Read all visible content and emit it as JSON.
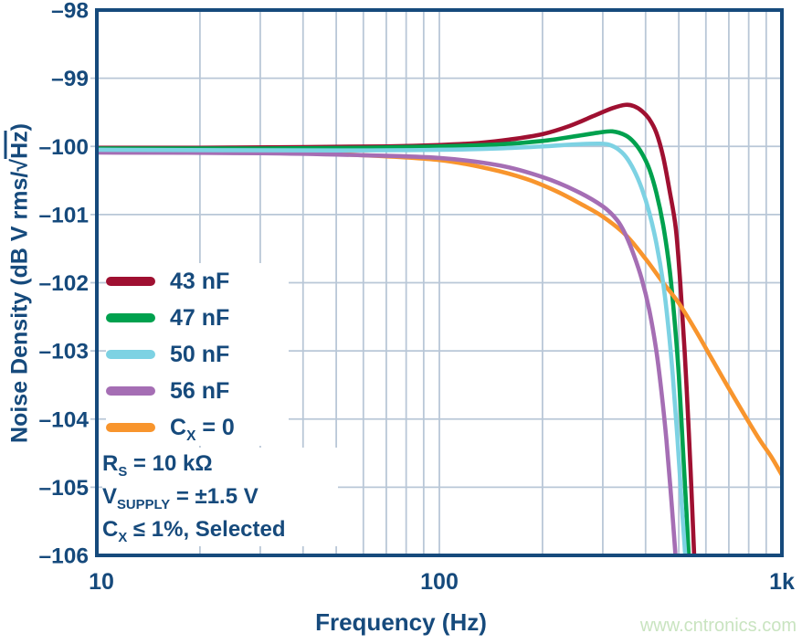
{
  "colors": {
    "navy": "#164A7C",
    "grid": "#b9c7d7",
    "background": "#ffffff",
    "watermark_green": "#c9e4c0"
  },
  "watermark": "www.cntronics.com",
  "chart_data": {
    "type": "line",
    "title": "",
    "xlabel": "Frequency (Hz)",
    "ylabel": "Noise Density (dB V rms/√Hz)",
    "ylabel_parts": {
      "prefix": "Noise Density (dB V rms/",
      "sqrt": "√",
      "overline": "Hz",
      "suffix": ")"
    },
    "x_scale": "log",
    "xlim": [
      10,
      1000
    ],
    "ylim": [
      -106,
      -98
    ],
    "grid": true,
    "x_ticks": [
      {
        "value": 10,
        "label": "10"
      },
      {
        "value": 100,
        "label": "100"
      },
      {
        "value": 1000,
        "label": "1k"
      }
    ],
    "x_gridlines": [
      20,
      30,
      40,
      50,
      60,
      70,
      80,
      90,
      100,
      200,
      300,
      400,
      500,
      600,
      700,
      800,
      900
    ],
    "y_ticks": [
      {
        "value": -98,
        "label": "–98"
      },
      {
        "value": -99,
        "label": "–99"
      },
      {
        "value": -100,
        "label": "–100"
      },
      {
        "value": -101,
        "label": "–101"
      },
      {
        "value": -102,
        "label": "–102"
      },
      {
        "value": -103,
        "label": "–103"
      },
      {
        "value": -104,
        "label": "–104"
      },
      {
        "value": -105,
        "label": "–105"
      },
      {
        "value": -106,
        "label": "–106"
      }
    ],
    "legend_position": "upper-left",
    "series": [
      {
        "name": "43 nF",
        "label_parts": {
          "pre": "43 nF",
          "sub": "",
          "post": ""
        },
        "color": "#9F1031",
        "points": [
          [
            10,
            -100.02
          ],
          [
            20,
            -100.02
          ],
          [
            40,
            -100.01
          ],
          [
            70,
            -100.0
          ],
          [
            100,
            -99.98
          ],
          [
            130,
            -99.95
          ],
          [
            160,
            -99.9
          ],
          [
            200,
            -99.82
          ],
          [
            240,
            -99.7
          ],
          [
            280,
            -99.56
          ],
          [
            320,
            -99.44
          ],
          [
            350,
            -99.39
          ],
          [
            370,
            -99.41
          ],
          [
            390,
            -99.48
          ],
          [
            410,
            -99.6
          ],
          [
            430,
            -99.8
          ],
          [
            450,
            -100.15
          ],
          [
            470,
            -100.65
          ],
          [
            490,
            -101.2
          ],
          [
            505,
            -102.0
          ],
          [
            520,
            -103.0
          ],
          [
            535,
            -104.2
          ],
          [
            545,
            -105.1
          ],
          [
            555,
            -106.05
          ]
        ]
      },
      {
        "name": "47 nF",
        "label_parts": {
          "pre": "47 nF",
          "sub": "",
          "post": ""
        },
        "color": "#00A14E",
        "points": [
          [
            10,
            -100.03
          ],
          [
            30,
            -100.03
          ],
          [
            60,
            -100.02
          ],
          [
            100,
            -100.0
          ],
          [
            150,
            -99.97
          ],
          [
            200,
            -99.92
          ],
          [
            250,
            -99.85
          ],
          [
            290,
            -99.8
          ],
          [
            320,
            -99.78
          ],
          [
            350,
            -99.84
          ],
          [
            370,
            -99.94
          ],
          [
            390,
            -100.1
          ],
          [
            410,
            -100.33
          ],
          [
            430,
            -100.68
          ],
          [
            450,
            -101.15
          ],
          [
            470,
            -101.8
          ],
          [
            485,
            -102.5
          ],
          [
            500,
            -103.35
          ],
          [
            515,
            -104.5
          ],
          [
            527,
            -105.4
          ],
          [
            535,
            -106.05
          ]
        ]
      },
      {
        "name": "50 nF",
        "label_parts": {
          "pre": "50 nF",
          "sub": "",
          "post": ""
        },
        "color": "#7DD2E3",
        "points": [
          [
            10,
            -100.05
          ],
          [
            50,
            -100.06
          ],
          [
            100,
            -100.05
          ],
          [
            150,
            -100.03
          ],
          [
            200,
            -100.0
          ],
          [
            250,
            -99.97
          ],
          [
            290,
            -99.96
          ],
          [
            310,
            -99.97
          ],
          [
            330,
            -100.03
          ],
          [
            350,
            -100.15
          ],
          [
            370,
            -100.35
          ],
          [
            390,
            -100.62
          ],
          [
            410,
            -100.97
          ],
          [
            430,
            -101.42
          ],
          [
            450,
            -102.0
          ],
          [
            465,
            -102.6
          ],
          [
            480,
            -103.35
          ],
          [
            495,
            -104.25
          ],
          [
            510,
            -105.25
          ],
          [
            523,
            -106.05
          ]
        ]
      },
      {
        "name": "56 nF",
        "label_parts": {
          "pre": "56 nF",
          "sub": "",
          "post": ""
        },
        "color": "#A56EB4",
        "points": [
          [
            10,
            -100.09
          ],
          [
            30,
            -100.1
          ],
          [
            60,
            -100.13
          ],
          [
            100,
            -100.17
          ],
          [
            150,
            -100.28
          ],
          [
            200,
            -100.45
          ],
          [
            250,
            -100.65
          ],
          [
            300,
            -100.88
          ],
          [
            330,
            -101.08
          ],
          [
            350,
            -101.3
          ],
          [
            370,
            -101.6
          ],
          [
            390,
            -101.95
          ],
          [
            410,
            -102.4
          ],
          [
            430,
            -103.0
          ],
          [
            445,
            -103.6
          ],
          [
            460,
            -104.3
          ],
          [
            475,
            -105.15
          ],
          [
            490,
            -106.05
          ]
        ]
      },
      {
        "name": "CX = 0",
        "label_parts": {
          "pre": "C",
          "sub": "X",
          "post": " = 0"
        },
        "color": "#F8952D",
        "points": [
          [
            10,
            -100.06
          ],
          [
            30,
            -100.08
          ],
          [
            60,
            -100.13
          ],
          [
            100,
            -100.2
          ],
          [
            140,
            -100.33
          ],
          [
            180,
            -100.48
          ],
          [
            220,
            -100.66
          ],
          [
            260,
            -100.85
          ],
          [
            300,
            -101.03
          ],
          [
            350,
            -101.3
          ],
          [
            400,
            -101.65
          ],
          [
            450,
            -102.0
          ],
          [
            500,
            -102.3
          ],
          [
            560,
            -102.7
          ],
          [
            630,
            -103.15
          ],
          [
            700,
            -103.55
          ],
          [
            780,
            -103.95
          ],
          [
            860,
            -104.3
          ],
          [
            930,
            -104.55
          ],
          [
            1000,
            -104.82
          ]
        ]
      }
    ],
    "draw_order": [
      0,
      1,
      4,
      3,
      2
    ],
    "annotation": {
      "lines": [
        {
          "pre": "R",
          "sub": "S",
          "post": " = 10 kΩ"
        },
        {
          "pre": "V",
          "sub": "SUPPLY",
          "post": " = ±1.5 V"
        },
        {
          "pre": "C",
          "sub": "X",
          "post": " ≤ 1%, Selected"
        }
      ]
    }
  }
}
